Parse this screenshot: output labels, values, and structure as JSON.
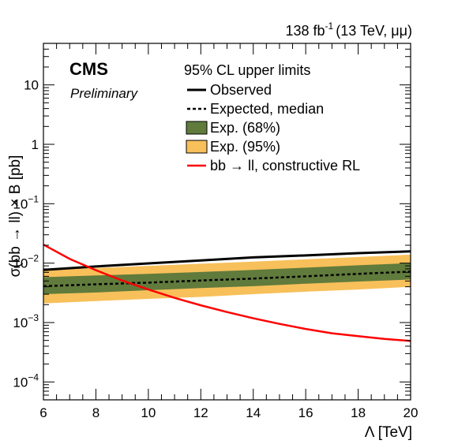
{
  "chart_data": {
    "type": "line",
    "experiment": "CMS",
    "status": "Preliminary",
    "lumi": {
      "value": "138 fb",
      "exponent": "-1",
      "condition": "(13 TeV, μμ)"
    },
    "xlabel": "Λ [TeV]",
    "ylabel": "σ(bb → ll) × B [pb]",
    "xlim": [
      6,
      20
    ],
    "ylim": [
      5e-05,
      50
    ],
    "yscale": "log",
    "x_ticks": [
      6,
      8,
      10,
      12,
      14,
      16,
      18,
      20
    ],
    "y_ticks": [
      {
        "value": 0.0001,
        "base": "10",
        "exp": "−4"
      },
      {
        "value": 0.001,
        "base": "10",
        "exp": "−3"
      },
      {
        "value": 0.01,
        "base": "10",
        "exp": "−2"
      },
      {
        "value": 0.1,
        "base": "10",
        "exp": "−1"
      },
      {
        "value": 1,
        "base": "1",
        "exp": ""
      },
      {
        "value": 10,
        "base": "10",
        "exp": ""
      }
    ],
    "legend": {
      "title": "95% CL upper limits",
      "position": "top-right",
      "entries": [
        {
          "label": "Observed",
          "style": "solid-black"
        },
        {
          "label": "Expected, median",
          "style": "dashed-black"
        },
        {
          "label": "Exp. (68%)",
          "style": "band-green"
        },
        {
          "label": "Exp. (95%)",
          "style": "band-yellow"
        },
        {
          "label": "bb → ll, constructive RL",
          "style": "solid-red"
        }
      ]
    },
    "colors": {
      "observed": "#000000",
      "expected": "#000000",
      "band68": "#607b3c",
      "band95": "#f8c05a",
      "theory": "#ff0000"
    },
    "series": [
      {
        "name": "Observed",
        "x": [
          6,
          8,
          10,
          12,
          14,
          16,
          18,
          20
        ],
        "values": [
          0.0077,
          0.0088,
          0.0099,
          0.0111,
          0.0125,
          0.0135,
          0.0147,
          0.0158
        ]
      },
      {
        "name": "Expected, median",
        "x": [
          6,
          8,
          10,
          12,
          14,
          16,
          18,
          20
        ],
        "values": [
          0.0041,
          0.0044,
          0.0047,
          0.0051,
          0.0055,
          0.006,
          0.0066,
          0.0072
        ]
      },
      {
        "name": "Exp. (68%)",
        "x": [
          6,
          8,
          10,
          12,
          14,
          16,
          18,
          20
        ],
        "low": [
          0.003,
          0.0032,
          0.0035,
          0.0038,
          0.0041,
          0.0045,
          0.0049,
          0.0053
        ],
        "high": [
          0.0058,
          0.0062,
          0.0066,
          0.0071,
          0.0077,
          0.0084,
          0.0092,
          0.01
        ]
      },
      {
        "name": "Exp. (95%)",
        "x": [
          6,
          8,
          10,
          12,
          14,
          16,
          18,
          20
        ],
        "low": [
          0.0021,
          0.0023,
          0.0025,
          0.0027,
          0.003,
          0.0033,
          0.0036,
          0.004
        ],
        "high": [
          0.0078,
          0.0083,
          0.009,
          0.0098,
          0.0106,
          0.0116,
          0.0127,
          0.0139
        ]
      },
      {
        "name": "bb → ll, constructive RL",
        "x": [
          6,
          7,
          8,
          9,
          10,
          11,
          12,
          13,
          14,
          15,
          16,
          17,
          18,
          19,
          20
        ],
        "values": [
          0.0205,
          0.0118,
          0.0076,
          0.0051,
          0.0036,
          0.0026,
          0.00195,
          0.0015,
          0.00118,
          0.00095,
          0.00078,
          0.00066,
          0.00059,
          0.00053,
          0.00049
        ]
      }
    ]
  }
}
